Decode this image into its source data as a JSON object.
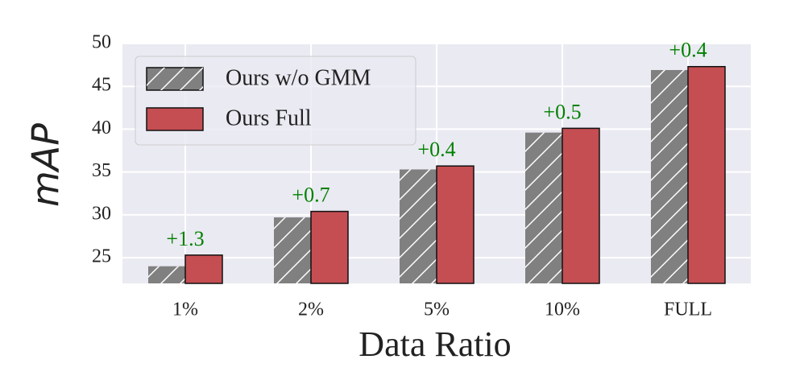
{
  "chart_data": {
    "type": "bar",
    "categories": [
      "1%",
      "2%",
      "5%",
      "10%",
      "FULL"
    ],
    "series": [
      {
        "name": "Ours w/o GMM",
        "color": "#808080",
        "hatch": "/",
        "values": [
          24.0,
          29.7,
          35.3,
          39.6,
          46.9
        ]
      },
      {
        "name": "Ours Full",
        "color": "#c44e52",
        "values": [
          25.3,
          30.4,
          35.7,
          40.1,
          47.3
        ]
      }
    ],
    "annotations": [
      "+1.3",
      "+0.7",
      "+0.4",
      "+0.5",
      "+0.4"
    ],
    "annotation_color": "#008000",
    "xlabel": "Data Ratio",
    "ylabel": "mAP",
    "ylim": [
      22,
      50
    ],
    "yticks": [
      25,
      30,
      35,
      40,
      45,
      50
    ],
    "grid": true,
    "legend": "upper left"
  }
}
